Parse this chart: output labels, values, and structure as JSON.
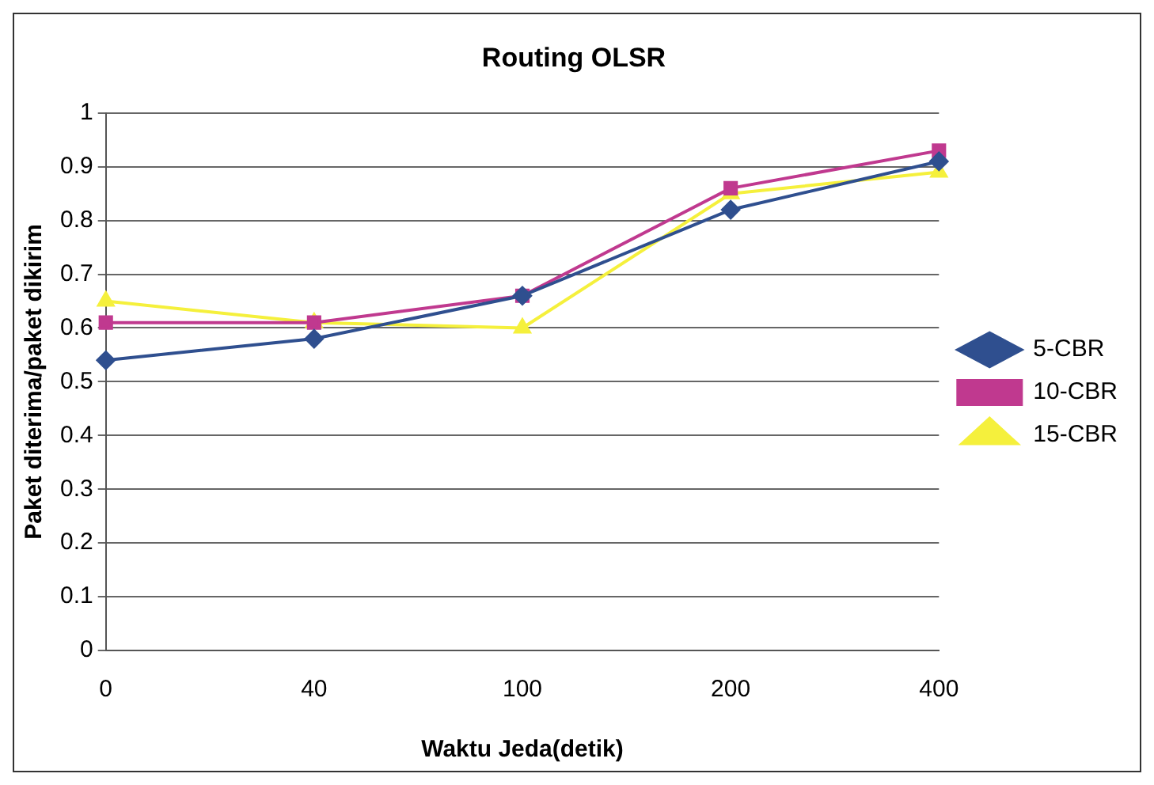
{
  "chart_data": {
    "type": "line",
    "title": "Routing OLSR",
    "xlabel": "Waktu Jeda(detik)",
    "ylabel": "Paket diterima/paket dikirim",
    "categories": [
      "0",
      "40",
      "100",
      "200",
      "400"
    ],
    "series": [
      {
        "name": "5-CBR",
        "color": "#2f4f8f",
        "marker": "diamond",
        "values": [
          0.54,
          0.58,
          0.66,
          0.82,
          0.91
        ]
      },
      {
        "name": "10-CBR",
        "color": "#c0398f",
        "marker": "square",
        "values": [
          0.61,
          0.61,
          0.66,
          0.86,
          0.93
        ]
      },
      {
        "name": "15-CBR",
        "color": "#f5f03c",
        "marker": "triangle",
        "values": [
          0.65,
          0.61,
          0.6,
          0.85,
          0.89
        ]
      }
    ],
    "ylim": [
      0,
      1
    ],
    "yticks": [
      0,
      0.1,
      0.2,
      0.3,
      0.4,
      0.5,
      0.6,
      0.7,
      0.8,
      0.9,
      1
    ],
    "grid": "y",
    "legend": "right",
    "line_style": "solid"
  }
}
